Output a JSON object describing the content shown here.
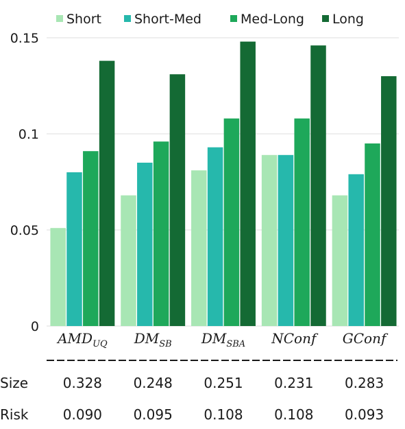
{
  "chart_data": {
    "type": "bar",
    "categories": [
      {
        "base": "AMD",
        "sub": "UQ"
      },
      {
        "base": "DM",
        "sub": "SB"
      },
      {
        "base": "DM",
        "sub": "SBA"
      },
      {
        "base": "NConf",
        "sub": ""
      },
      {
        "base": "GConf",
        "sub": ""
      }
    ],
    "series": [
      {
        "name": "Short",
        "color": "#a8e6b4",
        "values": [
          0.051,
          0.068,
          0.081,
          0.089,
          0.068
        ]
      },
      {
        "name": "Short-Med",
        "color": "#26b8ac",
        "values": [
          0.08,
          0.085,
          0.093,
          0.089,
          0.079
        ]
      },
      {
        "name": "Med-Long",
        "color": "#1ea85a",
        "values": [
          0.091,
          0.096,
          0.108,
          0.108,
          0.095
        ]
      },
      {
        "name": "Long",
        "color": "#146a34",
        "values": [
          0.138,
          0.131,
          0.148,
          0.146,
          0.13
        ]
      }
    ],
    "yticks": [
      "0",
      "0.05",
      "0.1",
      "0.15"
    ],
    "ylim": [
      0,
      0.15
    ],
    "grid": true,
    "legend_position": "top",
    "table": {
      "rows": [
        {
          "label": "Size",
          "values": [
            "0.328",
            "0.248",
            "0.251",
            "0.231",
            "0.283"
          ]
        },
        {
          "label": "Risk",
          "values": [
            "0.090",
            "0.095",
            "0.108",
            "0.108",
            "0.093"
          ]
        }
      ]
    }
  }
}
